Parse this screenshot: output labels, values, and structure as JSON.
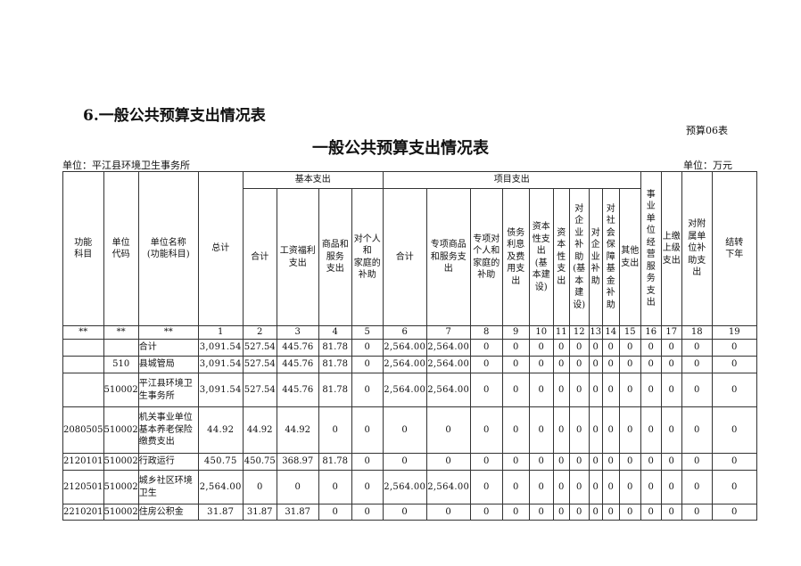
{
  "section_title": "6.一般公共预算支出情况表",
  "table_no": "预算06表",
  "title": "一般公共预算支出情况表",
  "unit_left": "单位：平江县环境卫生事务所",
  "unit_right": "单位：万元",
  "groups": {
    "basic": "基本支出",
    "project": "项目支出"
  },
  "headers": [
    "功能\n科目",
    "单位\n代码",
    "单位名称\n(功能科目)",
    "总计",
    "合计",
    "工资福利\n支出",
    "商品和\n服务\n支出",
    "对个人\n和\n家庭的\n补助",
    "合计",
    "专项商品\n和服务支\n出",
    "专项对\n个人和\n家庭的\n补助",
    "债务\n利息\n及费\n用支\n出",
    "资本\n性支\n出\n(基\n本建\n设)",
    "资\n本\n性\n支\n出",
    "对\n企\n业\n补\n助\n(基\n本\n建\n设)",
    "对\n企\n业\n补\n助",
    "对\n社\n会\n保\n障\n基\n金\n补\n助",
    "其他\n支出",
    "事\n业\n单\n位\n经\n营\n服\n务\n支\n出",
    "上缴\n上级\n支出",
    "对附\n属单\n位补\n助支\n出",
    "结转\n下年"
  ],
  "index_row": [
    "**",
    "**",
    "**",
    "1",
    "2",
    "3",
    "4",
    "5",
    "6",
    "7",
    "8",
    "9",
    "10",
    "11",
    "12",
    "13",
    "14",
    "15",
    "16",
    "17",
    "18",
    "19"
  ],
  "rows": [
    [
      "",
      "",
      "合计",
      "3,091.54",
      "527.54",
      "445.76",
      "81.78",
      "0",
      "2,564.00",
      "2,564.00",
      "0",
      "0",
      "0",
      "0",
      "0",
      "0",
      "0",
      "0",
      "0",
      "0",
      "0",
      "0"
    ],
    [
      "",
      "510",
      "县城管局",
      "3,091.54",
      "527.54",
      "445.76",
      "81.78",
      "0",
      "2,564.00",
      "2,564.00",
      "0",
      "0",
      "0",
      "0",
      "0",
      "0",
      "0",
      "0",
      "0",
      "0",
      "0",
      "0"
    ],
    [
      "",
      "510002",
      "平江县环境卫生事务所",
      "3,091.54",
      "527.54",
      "445.76",
      "81.78",
      "0",
      "2,564.00",
      "2,564.00",
      "0",
      "0",
      "0",
      "0",
      "0",
      "0",
      "0",
      "0",
      "0",
      "0",
      "0",
      "0"
    ],
    [
      "2080505",
      "510002",
      "机关事业单位基本养老保险缴费支出",
      "44.92",
      "44.92",
      "44.92",
      "0",
      "0",
      "0",
      "0",
      "0",
      "0",
      "0",
      "0",
      "0",
      "0",
      "0",
      "0",
      "0",
      "0",
      "0",
      "0"
    ],
    [
      "2120101",
      "510002",
      "行政运行",
      "450.75",
      "450.75",
      "368.97",
      "81.78",
      "0",
      "0",
      "0",
      "0",
      "0",
      "0",
      "0",
      "0",
      "0",
      "0",
      "0",
      "0",
      "0",
      "0",
      "0"
    ],
    [
      "2120501",
      "510002",
      "城乡社区环境卫生",
      "2,564.00",
      "0",
      "0",
      "0",
      "0",
      "2,564.00",
      "2,564.00",
      "0",
      "0",
      "0",
      "0",
      "0",
      "0",
      "0",
      "0",
      "0",
      "0",
      "0",
      "0"
    ],
    [
      "2210201",
      "510002",
      "住房公积金",
      "31.87",
      "31.87",
      "31.87",
      "0",
      "0",
      "0",
      "0",
      "0",
      "0",
      "0",
      "0",
      "0",
      "0",
      "0",
      "0",
      "0",
      "0",
      "0",
      "0"
    ]
  ]
}
